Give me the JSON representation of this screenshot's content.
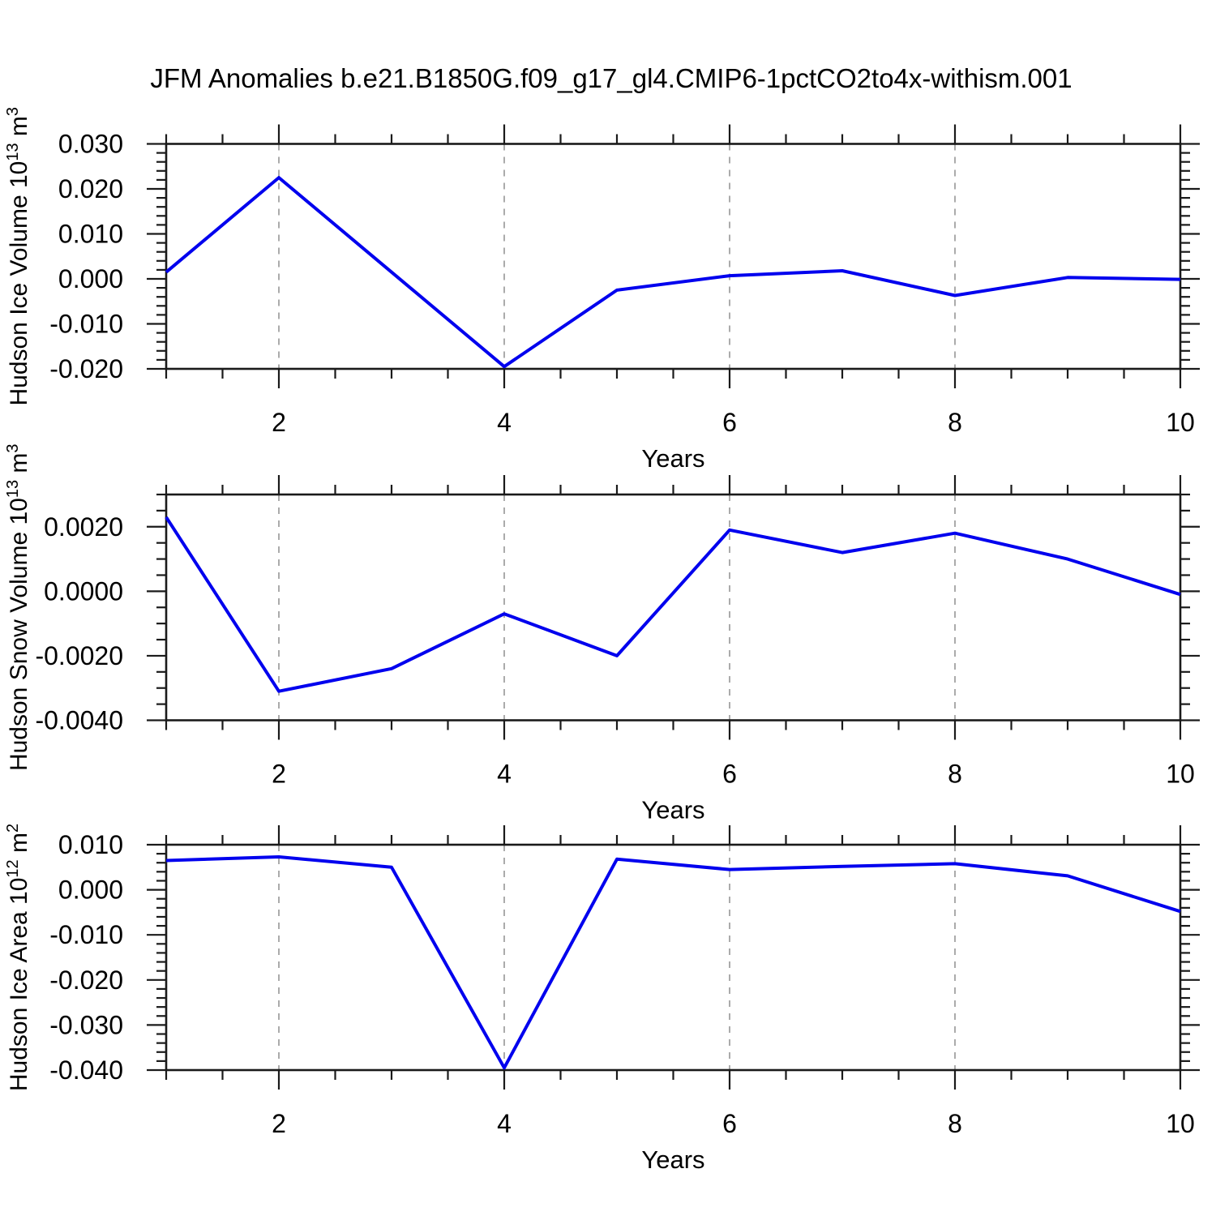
{
  "title": "JFM Anomalies b.e21.B1850G.f09_g17_gl4.CMIP6-1pctCO2to4x-withism.001",
  "colors": {
    "line": "#0000EE",
    "grid": "#ABABAB",
    "axis": "#1A1A1A",
    "text": "#000000"
  },
  "chart_data": [
    {
      "type": "line",
      "title": "",
      "xlabel": "Years",
      "ylabel_plain": "Hudson Ice Volume 10^13 m^3",
      "ylabel_segments": [
        {
          "t": "Hudson Ice Volume 10"
        },
        {
          "t": "13",
          "sup": true
        },
        {
          "t": " m"
        },
        {
          "t": "3",
          "sup": true
        }
      ],
      "x": [
        1,
        2,
        3,
        4,
        5,
        6,
        7,
        8,
        9,
        10
      ],
      "values": [
        0.0015,
        0.0225,
        0.0015,
        -0.0195,
        -0.0025,
        0.0007,
        0.0018,
        -0.0037,
        0.0003,
        -0.0001
      ],
      "xlim": [
        1,
        10
      ],
      "ylim": [
        -0.02,
        0.03
      ],
      "yticks": [
        {
          "v": 0.03,
          "label": "0.030"
        },
        {
          "v": 0.02,
          "label": "0.020"
        },
        {
          "v": 0.01,
          "label": "0.010"
        },
        {
          "v": 0.0,
          "label": "0.000"
        },
        {
          "v": -0.01,
          "label": "-0.010"
        },
        {
          "v": -0.02,
          "label": "-0.020"
        }
      ],
      "ytick_minor_step": 0.002,
      "xticks": [
        {
          "v": 2,
          "label": "2"
        },
        {
          "v": 4,
          "label": "4"
        },
        {
          "v": 6,
          "label": "6"
        },
        {
          "v": 8,
          "label": "8"
        },
        {
          "v": 10,
          "label": "10"
        }
      ],
      "xtick_minor_step": 0.5,
      "grid_x": [
        2,
        4,
        6,
        8
      ],
      "grid_style": "vertical-dashed",
      "legend": "none"
    },
    {
      "type": "line",
      "title": "",
      "xlabel": "Years",
      "ylabel_plain": "Hudson Snow Volume 10^13 m^3",
      "ylabel_segments": [
        {
          "t": "Hudson Snow Volume 10"
        },
        {
          "t": "13",
          "sup": true
        },
        {
          "t": " m"
        },
        {
          "t": "3",
          "sup": true
        }
      ],
      "x": [
        1,
        2,
        3,
        4,
        5,
        6,
        7,
        8,
        9,
        10
      ],
      "values": [
        0.0023,
        -0.0031,
        -0.0024,
        -0.0007,
        -0.002,
        0.0019,
        0.0012,
        0.0018,
        0.001,
        -0.0001
      ],
      "xlim": [
        1,
        10
      ],
      "ylim": [
        -0.004,
        0.003
      ],
      "yticks": [
        {
          "v": 0.002,
          "label": "0.0020"
        },
        {
          "v": 0.0,
          "label": "0.0000"
        },
        {
          "v": -0.002,
          "label": "-0.0020"
        },
        {
          "v": -0.004,
          "label": "-0.0040"
        }
      ],
      "ytick_minor_step": 0.0005,
      "xticks": [
        {
          "v": 2,
          "label": "2"
        },
        {
          "v": 4,
          "label": "4"
        },
        {
          "v": 6,
          "label": "6"
        },
        {
          "v": 8,
          "label": "8"
        },
        {
          "v": 10,
          "label": "10"
        }
      ],
      "xtick_minor_step": 0.5,
      "grid_x": [
        2,
        4,
        6,
        8
      ],
      "grid_style": "vertical-dashed",
      "legend": "none"
    },
    {
      "type": "line",
      "title": "",
      "xlabel": "Years",
      "ylabel_plain": "Hudson Ice Area 10^12 m^2",
      "ylabel_segments": [
        {
          "t": "Hudson Ice Area 10"
        },
        {
          "t": "12",
          "sup": true
        },
        {
          "t": " m"
        },
        {
          "t": "2",
          "sup": true
        }
      ],
      "x": [
        1,
        2,
        3,
        4,
        5,
        6,
        7,
        8,
        9,
        10
      ],
      "values": [
        0.0065,
        0.0073,
        0.005,
        -0.0395,
        0.0068,
        0.0045,
        0.0052,
        0.0058,
        0.0031,
        -0.0048
      ],
      "xlim": [
        1,
        10
      ],
      "ylim": [
        -0.04,
        0.01
      ],
      "yticks": [
        {
          "v": 0.01,
          "label": "0.010"
        },
        {
          "v": 0.0,
          "label": "0.000"
        },
        {
          "v": -0.01,
          "label": "-0.010"
        },
        {
          "v": -0.02,
          "label": "-0.020"
        },
        {
          "v": -0.03,
          "label": "-0.030"
        },
        {
          "v": -0.04,
          "label": "-0.040"
        }
      ],
      "ytick_minor_step": 0.002,
      "xticks": [
        {
          "v": 2,
          "label": "2"
        },
        {
          "v": 4,
          "label": "4"
        },
        {
          "v": 6,
          "label": "6"
        },
        {
          "v": 8,
          "label": "8"
        },
        {
          "v": 10,
          "label": "10"
        }
      ],
      "xtick_minor_step": 0.5,
      "grid_x": [
        2,
        4,
        6,
        8
      ],
      "grid_style": "vertical-dashed",
      "legend": "none"
    }
  ]
}
